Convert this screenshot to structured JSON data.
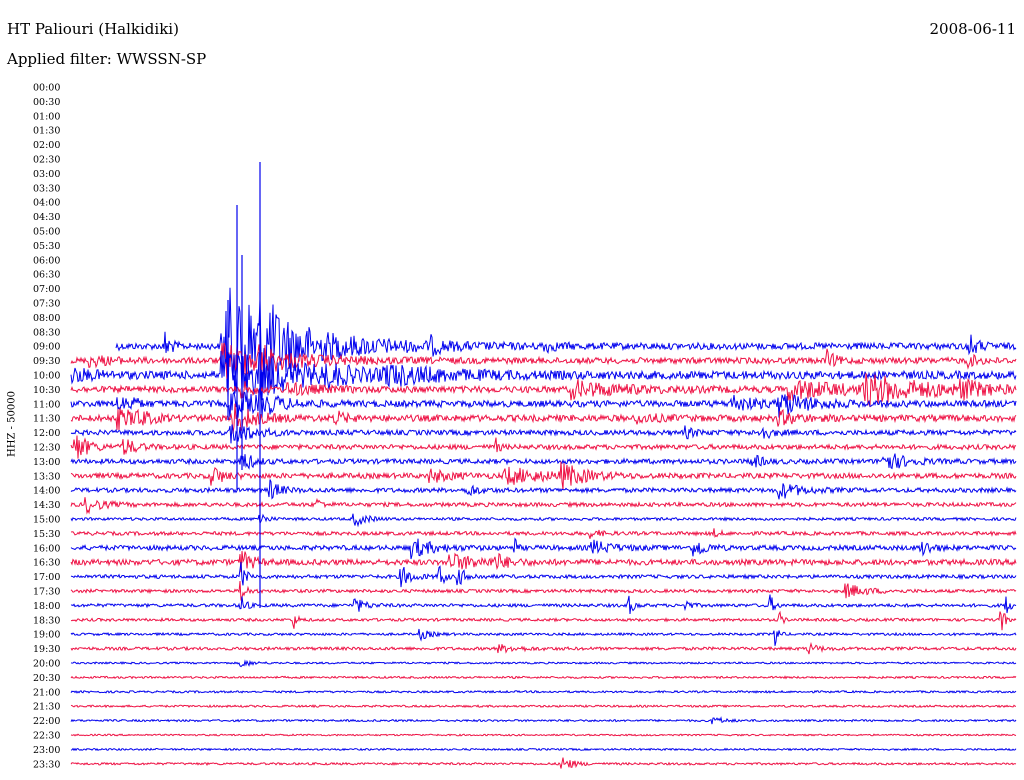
{
  "header": {
    "station": "HT Paliouri (Halkidiki)",
    "date": "2008-06-11",
    "filter": "Applied filter: WWSSN-SP"
  },
  "chart_data": {
    "type": "line",
    "title": "HT Paliouri (Halkidiki)",
    "subtitle": "Applied filter: WWSSN-SP",
    "ylabel": "HHZ - 50000",
    "xlabel": "",
    "colors": {
      "even_rows": "#0000ee",
      "odd_rows": "#ee1144"
    },
    "row_labels": [
      "00:00",
      "00:30",
      "01:00",
      "01:30",
      "02:00",
      "02:30",
      "03:00",
      "03:30",
      "04:00",
      "04:30",
      "05:00",
      "05:30",
      "06:00",
      "06:30",
      "07:00",
      "07:30",
      "08:00",
      "08:30",
      "09:00",
      "09:30",
      "10:00",
      "10:30",
      "11:00",
      "11:30",
      "12:00",
      "12:30",
      "13:00",
      "13:30",
      "14:00",
      "14:30",
      "15:00",
      "15:30",
      "16:00",
      "16:30",
      "17:00",
      "17:30",
      "18:00",
      "18:30",
      "19:00",
      "19:30",
      "20:00",
      "20:30",
      "21:00",
      "21:30",
      "22:00",
      "22:30",
      "23:00",
      "23:30"
    ],
    "data_start_row": 18,
    "traces": [
      {
        "label": "09:00",
        "noise": 3.2,
        "events": [
          [
            0.045,
            6,
            0.003
          ],
          [
            0.1,
            16,
            0.005
          ],
          [
            0.16,
            22,
            0.09
          ],
          [
            0.165,
            45,
            0.015
          ],
          [
            0.18,
            32,
            0.05
          ],
          [
            0.2,
            18,
            0.02
          ],
          [
            0.38,
            7,
            0.01
          ],
          [
            0.5,
            5,
            0.01
          ],
          [
            0.95,
            12,
            0.008
          ]
        ]
      },
      {
        "label": "09:30",
        "noise": 3.0,
        "events": [
          [
            0.02,
            5,
            0.02
          ],
          [
            0.16,
            18,
            0.06
          ],
          [
            0.2,
            10,
            0.01
          ],
          [
            0.8,
            9,
            0.008
          ],
          [
            0.95,
            5,
            0.01
          ]
        ]
      },
      {
        "label": "10:00",
        "noise": 4.0,
        "events": [
          [
            0.0,
            6,
            0.02
          ],
          [
            0.16,
            26,
            0.07
          ],
          [
            0.2,
            8,
            0.02
          ],
          [
            0.27,
            7,
            0.02
          ],
          [
            0.33,
            8,
            0.06
          ]
        ]
      },
      {
        "label": "10:30",
        "noise": 3.2,
        "events": [
          [
            0.18,
            8,
            0.01
          ],
          [
            0.23,
            5,
            0.03
          ],
          [
            0.53,
            8,
            0.05
          ],
          [
            0.76,
            10,
            0.05
          ],
          [
            0.84,
            14,
            0.06
          ],
          [
            0.94,
            8,
            0.02
          ]
        ]
      },
      {
        "label": "11:00",
        "noise": 3.2,
        "events": [
          [
            0.05,
            8,
            0.01
          ],
          [
            0.065,
            12,
            0.003
          ],
          [
            0.17,
            14,
            0.03
          ],
          [
            0.2,
            8,
            0.015
          ],
          [
            0.7,
            8,
            0.02
          ],
          [
            0.75,
            11,
            0.03
          ]
        ]
      },
      {
        "label": "11:30",
        "noise": 3.2,
        "events": [
          [
            0.05,
            9,
            0.02
          ],
          [
            0.07,
            6,
            0.01
          ],
          [
            0.17,
            16,
            0.02
          ],
          [
            0.28,
            6,
            0.01
          ],
          [
            0.6,
            4,
            0.02
          ],
          [
            0.75,
            6,
            0.02
          ]
        ]
      },
      {
        "label": "12:00",
        "noise": 2.5,
        "events": [
          [
            0.17,
            12,
            0.02
          ],
          [
            0.65,
            5,
            0.01
          ],
          [
            0.73,
            7,
            0.01
          ]
        ]
      },
      {
        "label": "12:30",
        "noise": 2.4,
        "events": [
          [
            0.005,
            14,
            0.012
          ],
          [
            0.055,
            9,
            0.012
          ],
          [
            0.45,
            8,
            0.003
          ]
        ]
      },
      {
        "label": "13:00",
        "noise": 2.4,
        "events": [
          [
            0.18,
            12,
            0.01
          ],
          [
            0.72,
            7,
            0.01
          ],
          [
            0.86,
            10,
            0.02
          ]
        ]
      },
      {
        "label": "13:30",
        "noise": 2.6,
        "events": [
          [
            0.15,
            10,
            0.01
          ],
          [
            0.38,
            6,
            0.02
          ],
          [
            0.46,
            8,
            0.04
          ],
          [
            0.52,
            11,
            0.02
          ]
        ]
      },
      {
        "label": "14:00",
        "noise": 2.2,
        "events": [
          [
            0.21,
            10,
            0.01
          ],
          [
            0.42,
            6,
            0.01
          ],
          [
            0.75,
            8,
            0.02
          ]
        ]
      },
      {
        "label": "14:30",
        "noise": 2.0,
        "events": [
          [
            0.015,
            8,
            0.015
          ],
          [
            0.26,
            6,
            0.005
          ]
        ]
      },
      {
        "label": "15:00",
        "noise": 1.4,
        "events": [
          [
            0.2,
            9,
            0.005
          ],
          [
            0.3,
            7,
            0.012
          ]
        ]
      },
      {
        "label": "15:30",
        "noise": 1.8,
        "events": [
          [
            0.55,
            4,
            0.01
          ],
          [
            0.68,
            4,
            0.005
          ]
        ]
      },
      {
        "label": "16:00",
        "noise": 2.4,
        "events": [
          [
            0.36,
            10,
            0.02
          ],
          [
            0.47,
            10,
            0.002
          ],
          [
            0.55,
            7,
            0.02
          ],
          [
            0.66,
            10,
            0.01
          ],
          [
            0.9,
            8,
            0.01
          ]
        ]
      },
      {
        "label": "16:30",
        "noise": 2.8,
        "events": [
          [
            0.18,
            12,
            0.01
          ],
          [
            0.4,
            8,
            0.03
          ],
          [
            0.45,
            7,
            0.01
          ]
        ]
      },
      {
        "label": "17:00",
        "noise": 1.8,
        "events": [
          [
            0.18,
            14,
            0.005
          ],
          [
            0.35,
            10,
            0.01
          ],
          [
            0.39,
            14,
            0.004
          ],
          [
            0.41,
            8,
            0.01
          ]
        ]
      },
      {
        "label": "17:30",
        "noise": 1.6,
        "events": [
          [
            0.18,
            12,
            0.005
          ],
          [
            0.82,
            7,
            0.02
          ]
        ]
      },
      {
        "label": "18:00",
        "noise": 1.6,
        "events": [
          [
            0.18,
            14,
            0.004
          ],
          [
            0.3,
            8,
            0.01
          ],
          [
            0.59,
            10,
            0.005
          ],
          [
            0.65,
            6,
            0.005
          ],
          [
            0.74,
            10,
            0.004
          ],
          [
            0.99,
            12,
            0.003
          ]
        ]
      },
      {
        "label": "18:30",
        "noise": 1.4,
        "events": [
          [
            0.235,
            10,
            0.004
          ],
          [
            0.75,
            8,
            0.003
          ],
          [
            0.985,
            14,
            0.003
          ]
        ]
      },
      {
        "label": "19:00",
        "noise": 1.2,
        "events": [
          [
            0.37,
            5,
            0.01
          ],
          [
            0.745,
            16,
            0.003
          ]
        ]
      },
      {
        "label": "19:30",
        "noise": 1.5,
        "events": [
          [
            0.45,
            4,
            0.02
          ],
          [
            0.78,
            5,
            0.01
          ]
        ]
      },
      {
        "label": "20:00",
        "noise": 0.9,
        "events": [
          [
            0.18,
            4,
            0.01
          ]
        ]
      },
      {
        "label": "20:30",
        "noise": 1.0,
        "events": []
      },
      {
        "label": "21:00",
        "noise": 1.0,
        "events": []
      },
      {
        "label": "21:30",
        "noise": 1.0,
        "events": []
      },
      {
        "label": "22:00",
        "noise": 1.0,
        "events": [
          [
            0.68,
            4,
            0.01
          ]
        ]
      },
      {
        "label": "22:30",
        "noise": 0.8,
        "events": []
      },
      {
        "label": "23:00",
        "noise": 0.9,
        "events": []
      },
      {
        "label": "23:30",
        "noise": 1.1,
        "events": [
          [
            0.52,
            8,
            0.01
          ]
        ]
      }
    ],
    "grid": false,
    "legend": "none"
  }
}
